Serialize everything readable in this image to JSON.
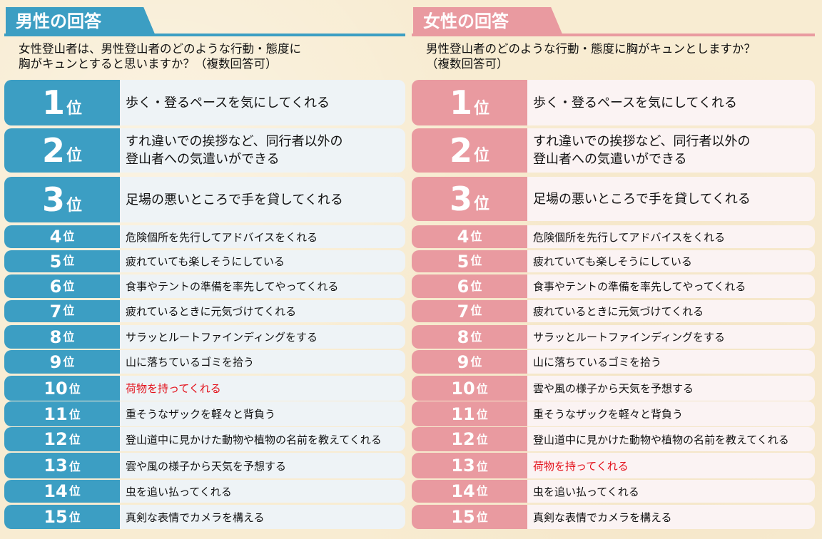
{
  "male": {
    "header": "男性の回答",
    "question_line1": "女性登山者は、男性登山者のどのような行動・態度に",
    "question_line2": "胸がキュンとすると思いますか？（複数回答可）",
    "rank_unit": "位",
    "items": [
      {
        "rank": "1",
        "text": "歩く・登るペースを気にしてくれる"
      },
      {
        "rank": "2",
        "text": "すれ違いでの挨拶など、同行者以外の\n登山者への気遣いができる"
      },
      {
        "rank": "3",
        "text": "足場の悪いところで手を貸してくれる"
      },
      {
        "rank": "4",
        "text": "危険個所を先行してアドバイスをくれる"
      },
      {
        "rank": "5",
        "text": "疲れていても楽しそうにしている"
      },
      {
        "rank": "6",
        "text": "食事やテントの準備を率先してやってくれる"
      },
      {
        "rank": "7",
        "text": "疲れているときに元気づけてくれる"
      },
      {
        "rank": "8",
        "text": "サラッとルートファインディングをする"
      },
      {
        "rank": "9",
        "text": "山に落ちているゴミを拾う"
      },
      {
        "rank": "10",
        "text": "荷物を持ってくれる",
        "highlight": true
      },
      {
        "rank": "11",
        "text": "重そうなザックを軽々と背負う"
      },
      {
        "rank": "12",
        "text": "登山道中に見かけた動物や植物の名前を教えてくれる"
      },
      {
        "rank": "13",
        "text": "雲や風の様子から天気を予想する"
      },
      {
        "rank": "14",
        "text": "虫を追い払ってくれる"
      },
      {
        "rank": "15",
        "text": "真剣な表情でカメラを構える"
      }
    ]
  },
  "female": {
    "header": "女性の回答",
    "question_line1": "男性登山者のどのような行動・態度に胸がキュンとしますか？",
    "question_line2": "（複数回答可）",
    "rank_unit": "位",
    "items": [
      {
        "rank": "1",
        "text": "歩く・登るペースを気にしてくれる"
      },
      {
        "rank": "2",
        "text": "すれ違いでの挨拶など、同行者以外の\n登山者への気遣いができる"
      },
      {
        "rank": "3",
        "text": "足場の悪いところで手を貸してくれる"
      },
      {
        "rank": "4",
        "text": "危険個所を先行してアドバイスをくれる"
      },
      {
        "rank": "5",
        "text": "疲れていても楽しそうにしている"
      },
      {
        "rank": "6",
        "text": "食事やテントの準備を率先してやってくれる"
      },
      {
        "rank": "7",
        "text": "疲れているときに元気づけてくれる"
      },
      {
        "rank": "8",
        "text": "サラッとルートファインディングをする"
      },
      {
        "rank": "9",
        "text": "山に落ちているゴミを拾う"
      },
      {
        "rank": "10",
        "text": "雲や風の様子から天気を予想する"
      },
      {
        "rank": "11",
        "text": "重そうなザックを軽々と背負う"
      },
      {
        "rank": "12",
        "text": "登山道中に見かけた動物や植物の名前を教えてくれる"
      },
      {
        "rank": "13",
        "text": "荷物を持ってくれる",
        "highlight": true
      },
      {
        "rank": "14",
        "text": "虫を追い払ってくれる"
      },
      {
        "rank": "15",
        "text": "真剣な表情でカメラを構える"
      }
    ]
  },
  "colors": {
    "male_accent": "#3c9ec3",
    "female_accent": "#e99aa0",
    "highlight_text": "#e3101a"
  }
}
